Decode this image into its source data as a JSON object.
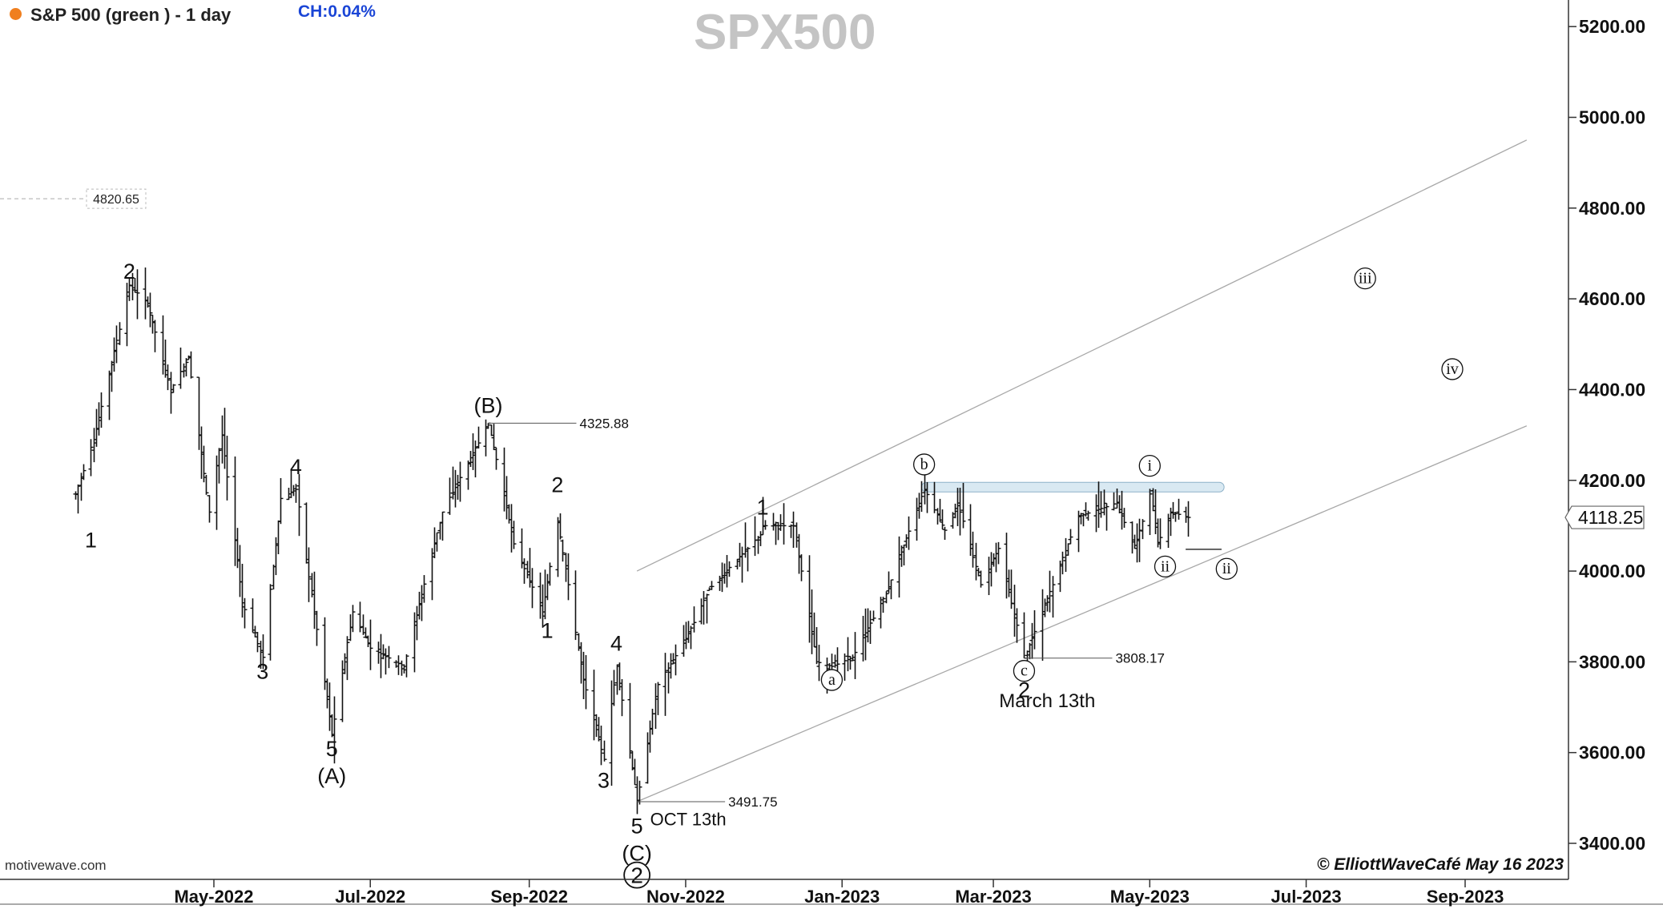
{
  "header": {
    "symbol_label": "S&P 500 (green ) - 1 day",
    "change_label": "CH:0.04%",
    "status_dot_color": "#f07f1f"
  },
  "watermark": "SPX500",
  "footer": {
    "source": "motivewave.com",
    "copyright": "© ElliottWaveCafé May 16 2023"
  },
  "chart_data": {
    "type": "ohlc",
    "title": "SPX500",
    "timeframe": "1 day",
    "y_axis": {
      "ticks": [
        3400,
        3600,
        3800,
        4000,
        4200,
        4400,
        4600,
        4800,
        5000,
        5200
      ],
      "range": [
        3250,
        5300
      ],
      "tick_format": "0.00"
    },
    "x_axis": {
      "labels": [
        {
          "label": "May-2022",
          "date": "2022-05-01"
        },
        {
          "label": "Jul-2022",
          "date": "2022-07-01"
        },
        {
          "label": "Sep-2022",
          "date": "2022-09-01"
        },
        {
          "label": "Nov-2022",
          "date": "2022-11-01"
        },
        {
          "label": "Jan-2023",
          "date": "2023-01-01"
        },
        {
          "label": "Mar-2023",
          "date": "2023-03-01"
        },
        {
          "label": "May-2023",
          "date": "2023-05-01"
        },
        {
          "label": "Jul-2023",
          "date": "2023-07-01"
        },
        {
          "label": "Sep-2023",
          "date": "2023-09-01"
        }
      ]
    },
    "price_path": [
      [
        "2022-03-08",
        4170
      ],
      [
        "2022-03-15",
        4290
      ],
      [
        "2022-03-29",
        4630
      ],
      [
        "2022-04-05",
        4590
      ],
      [
        "2022-04-14",
        4400
      ],
      [
        "2022-04-21",
        4470
      ],
      [
        "2022-04-29",
        4130
      ],
      [
        "2022-05-04",
        4300
      ],
      [
        "2022-05-12",
        3930
      ],
      [
        "2022-05-20",
        3810
      ],
      [
        "2022-05-27",
        4160
      ],
      [
        "2022-06-02",
        4180
      ],
      [
        "2022-06-16",
        3640
      ],
      [
        "2022-06-24",
        3910
      ],
      [
        "2022-07-01",
        3830
      ],
      [
        "2022-07-14",
        3790
      ],
      [
        "2022-07-29",
        4130
      ],
      [
        "2022-08-16",
        4325.88
      ],
      [
        "2022-08-26",
        4060
      ],
      [
        "2022-09-06",
        3910
      ],
      [
        "2022-09-12",
        4110
      ],
      [
        "2022-09-22",
        3760
      ],
      [
        "2022-09-30",
        3585
      ],
      [
        "2022-10-05",
        3790
      ],
      [
        "2022-10-13",
        3491.75
      ],
      [
        "2022-10-21",
        3750
      ],
      [
        "2022-11-01",
        3850
      ],
      [
        "2022-11-10",
        3960
      ],
      [
        "2022-11-30",
        4080
      ],
      [
        "2022-12-01",
        4100
      ],
      [
        "2022-12-13",
        4100
      ],
      [
        "2022-12-22",
        3800
      ],
      [
        "2022-12-28",
        3790
      ],
      [
        "2023-01-05",
        3810
      ],
      [
        "2023-01-18",
        3950
      ],
      [
        "2023-02-02",
        4180
      ],
      [
        "2023-02-10",
        4090
      ],
      [
        "2023-02-15",
        4150
      ],
      [
        "2023-02-24",
        3970
      ],
      [
        "2023-03-03",
        4050
      ],
      [
        "2023-03-13",
        3808.17
      ],
      [
        "2023-03-22",
        3940
      ],
      [
        "2023-04-03",
        4120
      ],
      [
        "2023-04-18",
        4150
      ],
      [
        "2023-04-25",
        4050
      ],
      [
        "2023-05-01",
        4170
      ],
      [
        "2023-05-04",
        4060
      ],
      [
        "2023-05-09",
        4130
      ],
      [
        "2023-05-16",
        4118.25
      ]
    ],
    "annotations": {
      "wave_labels": [
        {
          "text": "2",
          "date": "2022-03-29",
          "price": 4630,
          "pos": "above"
        },
        {
          "text": "1",
          "date": "2022-03-14",
          "price": 4100,
          "pos": "below"
        },
        {
          "text": "3",
          "date": "2022-05-20",
          "price": 3810,
          "pos": "below"
        },
        {
          "text": "4",
          "date": "2022-06-02",
          "price": 4200,
          "pos": "above"
        },
        {
          "text": "5",
          "date": "2022-06-16",
          "price": 3640,
          "pos": "below"
        },
        {
          "text": "(A)",
          "date": "2022-06-16",
          "price": 3580,
          "pos": "below"
        },
        {
          "text": "(B)",
          "date": "2022-08-16",
          "price": 4335,
          "pos": "above"
        },
        {
          "text": "2",
          "date": "2022-09-12",
          "price": 4160,
          "pos": "above"
        },
        {
          "text": "1",
          "date": "2022-09-08",
          "price": 3900,
          "pos": "below"
        },
        {
          "text": "4",
          "date": "2022-10-05",
          "price": 3810,
          "pos": "above"
        },
        {
          "text": "3",
          "date": "2022-09-30",
          "price": 3570,
          "pos": "below"
        },
        {
          "text": "5",
          "date": "2022-10-13",
          "price": 3470,
          "pos": "below"
        },
        {
          "text": "(C)",
          "date": "2022-10-13",
          "price": 3410,
          "pos": "below"
        },
        {
          "text": "1",
          "date": "2022-12-01",
          "price": 4110,
          "pos": "above"
        },
        {
          "text": "2",
          "date": "2023-03-13",
          "price": 3770,
          "pos": "below"
        }
      ],
      "circled_labels": [
        {
          "text": "2",
          "date": "2022-10-13",
          "price": 3330
        },
        {
          "text": "a",
          "date": "2022-12-28",
          "price": 3760
        },
        {
          "text": "b",
          "date": "2023-02-02",
          "price": 4235
        },
        {
          "text": "c",
          "date": "2023-03-13",
          "price": 3780
        },
        {
          "text": "i",
          "date": "2023-05-01",
          "price": 4232
        },
        {
          "text": "ii",
          "date": "2023-05-07",
          "price": 4010
        },
        {
          "text": "ii",
          "date": "2023-05-31",
          "price": 4005
        },
        {
          "text": "iii",
          "date": "2023-07-24",
          "price": 4645
        },
        {
          "text": "iv",
          "date": "2023-08-27",
          "price": 4445
        }
      ],
      "price_callouts": [
        {
          "text": "4325.88",
          "date": "2022-08-16",
          "price": 4325.88
        },
        {
          "text": "3491.75",
          "date": "2022-10-13",
          "price": 3491.75
        },
        {
          "text": "3808.17",
          "date": "2023-03-13",
          "price": 3808.17
        }
      ],
      "captions": [
        {
          "text": "OCT 13th",
          "date": "2022-11-02",
          "price": 3440
        },
        {
          "text": "March 13th",
          "date": "2023-03-22",
          "price": 3700
        }
      ],
      "dashed_level": {
        "text": "4820.65",
        "price": 4820.65
      },
      "current_price_label": "4118.25",
      "channel_lines": [
        {
          "from": [
            "2022-10-13",
            3491.75
          ],
          "to": [
            "2023-09-25",
            4320
          ]
        },
        {
          "from": [
            "2022-10-13",
            4000
          ],
          "to": [
            "2023-09-25",
            4950
          ]
        }
      ],
      "resistance_zone": {
        "from_date": "2023-02-01",
        "to_date": "2023-05-30",
        "price": 4185
      },
      "projection_line": {
        "from_date": "2023-05-15",
        "to_date": "2023-05-29",
        "price": 4048
      }
    }
  }
}
